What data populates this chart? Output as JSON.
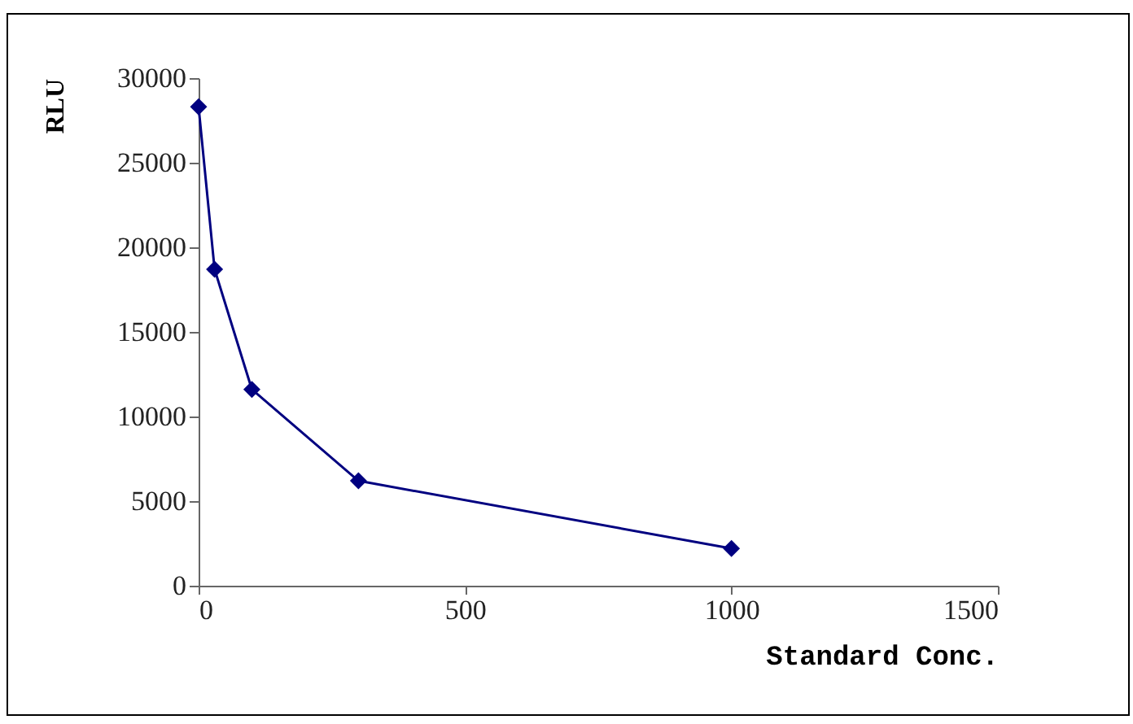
{
  "chart_data": {
    "type": "line",
    "xlabel": "Standard Conc.",
    "ylabel": "RLU",
    "x": [
      0,
      30,
      100,
      300,
      1000
    ],
    "series": [
      {
        "color": "#000080",
        "values": [
          28300,
          18700,
          11600,
          6200,
          2200
        ]
      }
    ],
    "xlim": [
      0,
      1500
    ],
    "xticks": [
      0,
      500,
      1000,
      1500
    ],
    "ylim": [
      0,
      30000
    ],
    "yticks": [
      0,
      5000,
      10000,
      15000,
      20000,
      25000,
      30000
    ],
    "grid": false,
    "legend": false,
    "marker": "diamond",
    "line_style": "solid"
  }
}
